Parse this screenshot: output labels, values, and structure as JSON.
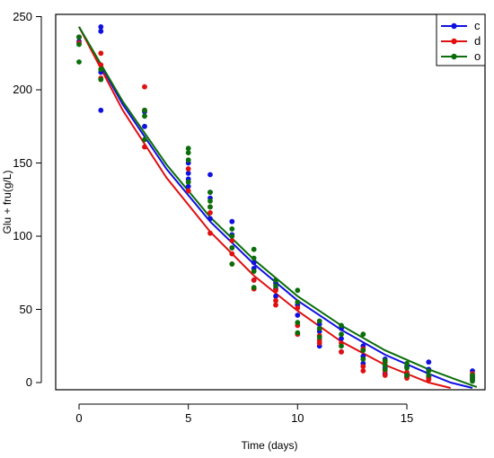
{
  "chart_data": {
    "type": "scatter",
    "title": "",
    "xlabel": "Time (days)",
    "ylabel": "Glu + fru(g/L)",
    "xlim": [
      -0.6,
      18.6
    ],
    "ylim": [
      -5,
      250
    ],
    "xticks": [
      0,
      5,
      10,
      15
    ],
    "yticks": [
      0,
      50,
      100,
      150,
      200,
      250
    ],
    "grid": false,
    "legend_position": "top-right",
    "series": [
      {
        "name": "c",
        "color": "#1010e0",
        "points": [
          [
            0,
            236
          ],
          [
            0,
            233
          ],
          [
            1,
            243
          ],
          [
            1,
            240
          ],
          [
            1,
            212
          ],
          [
            1,
            186
          ],
          [
            3,
            175
          ],
          [
            3,
            185
          ],
          [
            5,
            143
          ],
          [
            5,
            139
          ],
          [
            5,
            134
          ],
          [
            5,
            150
          ],
          [
            6,
            142
          ],
          [
            6,
            130
          ],
          [
            6,
            112
          ],
          [
            6,
            126
          ],
          [
            7,
            110
          ],
          [
            7,
            101
          ],
          [
            7,
            92
          ],
          [
            8,
            78
          ],
          [
            8,
            82
          ],
          [
            8,
            70
          ],
          [
            9,
            68
          ],
          [
            9,
            64
          ],
          [
            9,
            59
          ],
          [
            10,
            53
          ],
          [
            10,
            46
          ],
          [
            11,
            40
          ],
          [
            11,
            35
          ],
          [
            11,
            25
          ],
          [
            12,
            37
          ],
          [
            12,
            30
          ],
          [
            12,
            21
          ],
          [
            13,
            25
          ],
          [
            13,
            18
          ],
          [
            13,
            13
          ],
          [
            14,
            16
          ],
          [
            14,
            10
          ],
          [
            14,
            6
          ],
          [
            15,
            11
          ],
          [
            15,
            6
          ],
          [
            15,
            4
          ],
          [
            16,
            14
          ],
          [
            16,
            9
          ],
          [
            16,
            4
          ],
          [
            18,
            8
          ],
          [
            18,
            4
          ],
          [
            18,
            2
          ]
        ],
        "fit": [
          [
            0,
            243
          ],
          [
            2,
            190
          ],
          [
            4,
            146
          ],
          [
            6,
            110
          ],
          [
            8,
            81
          ],
          [
            10,
            56
          ],
          [
            12,
            36
          ],
          [
            14,
            19
          ],
          [
            16,
            6
          ],
          [
            17,
            0
          ],
          [
            18,
            -5
          ]
        ]
      },
      {
        "name": "d",
        "color": "#e01010",
        "points": [
          [
            0,
            236
          ],
          [
            0,
            232
          ],
          [
            1,
            225
          ],
          [
            1,
            217
          ],
          [
            1,
            208
          ],
          [
            3,
            202
          ],
          [
            3,
            186
          ],
          [
            3,
            161
          ],
          [
            5,
            146
          ],
          [
            5,
            131
          ],
          [
            6,
            120
          ],
          [
            6,
            116
          ],
          [
            6,
            102
          ],
          [
            7,
            97
          ],
          [
            7,
            88
          ],
          [
            7,
            81
          ],
          [
            8,
            70
          ],
          [
            8,
            64
          ],
          [
            9,
            63
          ],
          [
            9,
            56
          ],
          [
            9,
            53
          ],
          [
            10,
            51
          ],
          [
            10,
            39
          ],
          [
            10,
            33
          ],
          [
            11,
            32
          ],
          [
            11,
            29
          ],
          [
            11,
            27
          ],
          [
            12,
            27
          ],
          [
            12,
            21
          ],
          [
            13,
            23
          ],
          [
            13,
            11
          ],
          [
            13,
            8
          ],
          [
            14,
            14
          ],
          [
            14,
            8
          ],
          [
            14,
            5
          ],
          [
            15,
            7
          ],
          [
            15,
            4
          ],
          [
            15,
            3
          ],
          [
            16,
            4
          ],
          [
            16,
            3
          ],
          [
            16,
            2
          ],
          [
            18,
            6
          ],
          [
            18,
            3
          ]
        ],
        "fit": [
          [
            0,
            243
          ],
          [
            2,
            186
          ],
          [
            4,
            140
          ],
          [
            6,
            103
          ],
          [
            8,
            73
          ],
          [
            10,
            49
          ],
          [
            12,
            28
          ],
          [
            14,
            12
          ],
          [
            16,
            0
          ],
          [
            17,
            -5
          ]
        ]
      },
      {
        "name": "o",
        "color": "#0b6e0b",
        "points": [
          [
            0,
            236
          ],
          [
            0,
            231
          ],
          [
            0,
            219
          ],
          [
            1,
            214
          ],
          [
            1,
            207
          ],
          [
            3,
            186
          ],
          [
            3,
            182
          ],
          [
            3,
            166
          ],
          [
            5,
            160
          ],
          [
            5,
            157
          ],
          [
            5,
            152
          ],
          [
            5,
            137
          ],
          [
            6,
            130
          ],
          [
            6,
            124
          ],
          [
            6,
            120
          ],
          [
            7,
            105
          ],
          [
            7,
            100
          ],
          [
            7,
            92
          ],
          [
            7,
            81
          ],
          [
            8,
            91
          ],
          [
            8,
            85
          ],
          [
            8,
            76
          ],
          [
            8,
            65
          ],
          [
            9,
            70
          ],
          [
            9,
            66
          ],
          [
            10,
            63
          ],
          [
            10,
            55
          ],
          [
            10,
            41
          ],
          [
            10,
            34
          ],
          [
            11,
            42
          ],
          [
            11,
            37
          ],
          [
            11,
            31
          ],
          [
            12,
            39
          ],
          [
            12,
            33
          ],
          [
            12,
            25
          ],
          [
            13,
            33
          ],
          [
            13,
            22
          ],
          [
            13,
            16
          ],
          [
            14,
            15
          ],
          [
            14,
            12
          ],
          [
            14,
            9
          ],
          [
            15,
            13
          ],
          [
            15,
            10
          ],
          [
            15,
            5
          ],
          [
            16,
            8
          ],
          [
            16,
            5
          ],
          [
            18,
            5
          ],
          [
            18,
            3
          ],
          [
            18,
            1
          ]
        ],
        "fit": [
          [
            0,
            243
          ],
          [
            2,
            192
          ],
          [
            4,
            149
          ],
          [
            6,
            113
          ],
          [
            8,
            84
          ],
          [
            10,
            59
          ],
          [
            12,
            39
          ],
          [
            14,
            22
          ],
          [
            16,
            9
          ],
          [
            18,
            -2
          ],
          [
            18.2,
            -3
          ]
        ]
      }
    ]
  }
}
